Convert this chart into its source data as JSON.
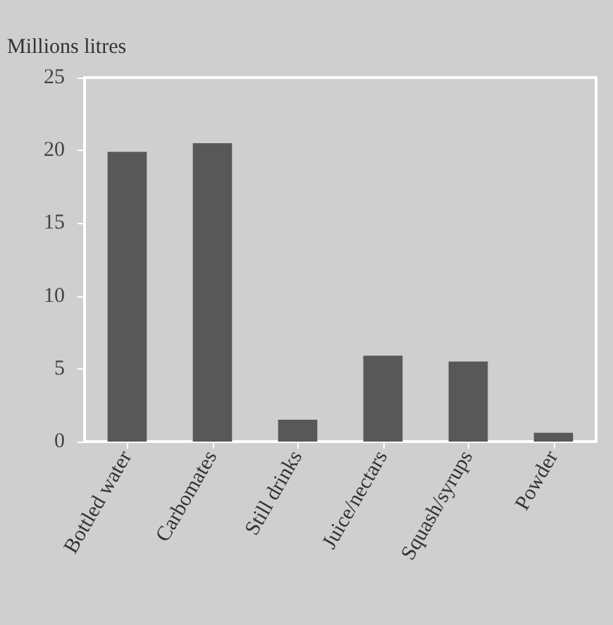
{
  "chart_data": {
    "type": "bar",
    "ylabel": "Millions litres",
    "categories": [
      "Bottled water",
      "Carbomates",
      "Still drinks",
      "Juice/nectars",
      "Squash/syrups",
      "Powder"
    ],
    "values": [
      19.9,
      20.5,
      1.5,
      5.9,
      5.5,
      0.6
    ],
    "color": "#585858",
    "ylim": [
      0,
      25
    ],
    "yticks": [
      0,
      5,
      10,
      15,
      20,
      25
    ],
    "grid": false
  }
}
